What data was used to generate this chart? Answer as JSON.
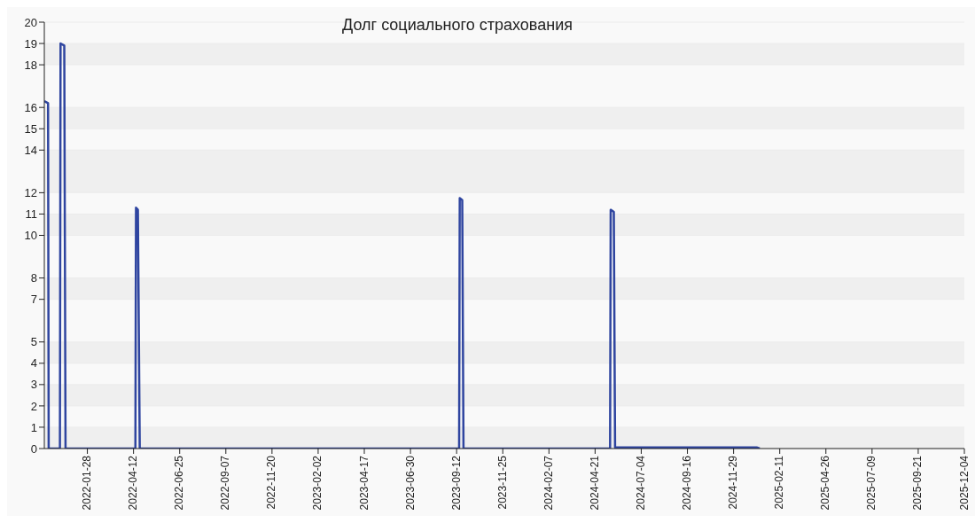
{
  "chart_data": {
    "type": "line",
    "title": "Долг социального страхования",
    "x": [
      "2021-11-20",
      "2021-11-26",
      "2021-11-27",
      "2021-12-15",
      "2021-12-16",
      "2021-12-22",
      "2021-12-24",
      "2022-04-15",
      "2022-04-16",
      "2022-04-19",
      "2022-04-22",
      "2023-09-16",
      "2023-09-17",
      "2023-09-21",
      "2023-09-23",
      "2024-05-15",
      "2024-05-16",
      "2024-05-21",
      "2024-05-23",
      "2024-07-01",
      "2024-10-01",
      "2025-01-05",
      "2025-01-10"
    ],
    "series": [
      {
        "color": "#2f45a0",
        "values": [
          16.3,
          16.2,
          0,
          0,
          19.0,
          18.9,
          0,
          0,
          11.3,
          11.2,
          0,
          0,
          11.75,
          11.65,
          0,
          0,
          11.2,
          11.1,
          0.05,
          0.05,
          0.05,
          0.05,
          0
        ]
      }
    ],
    "xlim": [
      "2021-11-20",
      "2025-12-04"
    ],
    "xticks": [
      "2022-01-28",
      "2022-04-12",
      "2022-06-25",
      "2022-09-07",
      "2022-11-20",
      "2023-02-02",
      "2023-04-17",
      "2023-06-30",
      "2023-09-12",
      "2023-11-25",
      "2024-02-07",
      "2024-04-21",
      "2024-07-04",
      "2024-09-16",
      "2024-11-29",
      "2025-02-11",
      "2025-04-26",
      "2025-07-09",
      "2025-09-21",
      "2025-12-04"
    ],
    "ylim": [
      0,
      20
    ],
    "yticks": [
      0,
      1,
      2,
      3,
      4,
      5,
      7,
      8,
      10,
      11,
      12,
      14,
      15,
      16,
      18,
      19,
      20
    ],
    "grid": "y",
    "marker": "none",
    "line_style": "solid",
    "legend": false
  }
}
